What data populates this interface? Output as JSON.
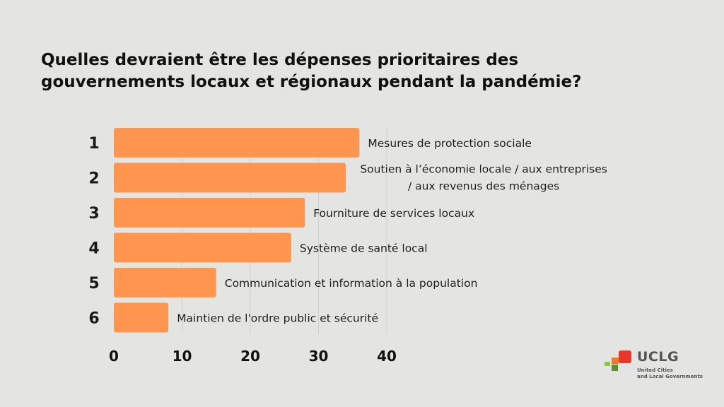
{
  "title_lines": [
    "Quelles devraient être les dépenses prioritaires des",
    "gouvernements locaux et régionaux pendant la pandémie?"
  ],
  "chart_data": {
    "type": "bar",
    "orientation": "horizontal",
    "ranks": [
      "1",
      "2",
      "3",
      "4",
      "5",
      "6"
    ],
    "categories": [
      [
        "Mesures de protection sociale"
      ],
      [
        "Soutien à l’économie locale / aux entreprises",
        "/ aux revenus des ménages"
      ],
      [
        "Fourniture de services locaux"
      ],
      [
        "Système de santé local"
      ],
      [
        "Communication et information à la population"
      ],
      [
        "Maintien de l'ordre public et sécurité"
      ]
    ],
    "values": [
      36,
      34,
      28,
      26,
      15,
      8
    ],
    "xlim": [
      0,
      40
    ],
    "xticks": [
      "0",
      "10",
      "20",
      "30",
      "40"
    ],
    "grid": true,
    "bar_color": "#ff9650",
    "grid_color": "#cfcfcc"
  },
  "logo": {
    "word": "UCLG",
    "subtitle_lines": [
      "United Cities",
      "and Local Governments"
    ],
    "colors": [
      "#e8372a",
      "#f07a2a",
      "#8dc63f",
      "#5a8f29"
    ]
  }
}
